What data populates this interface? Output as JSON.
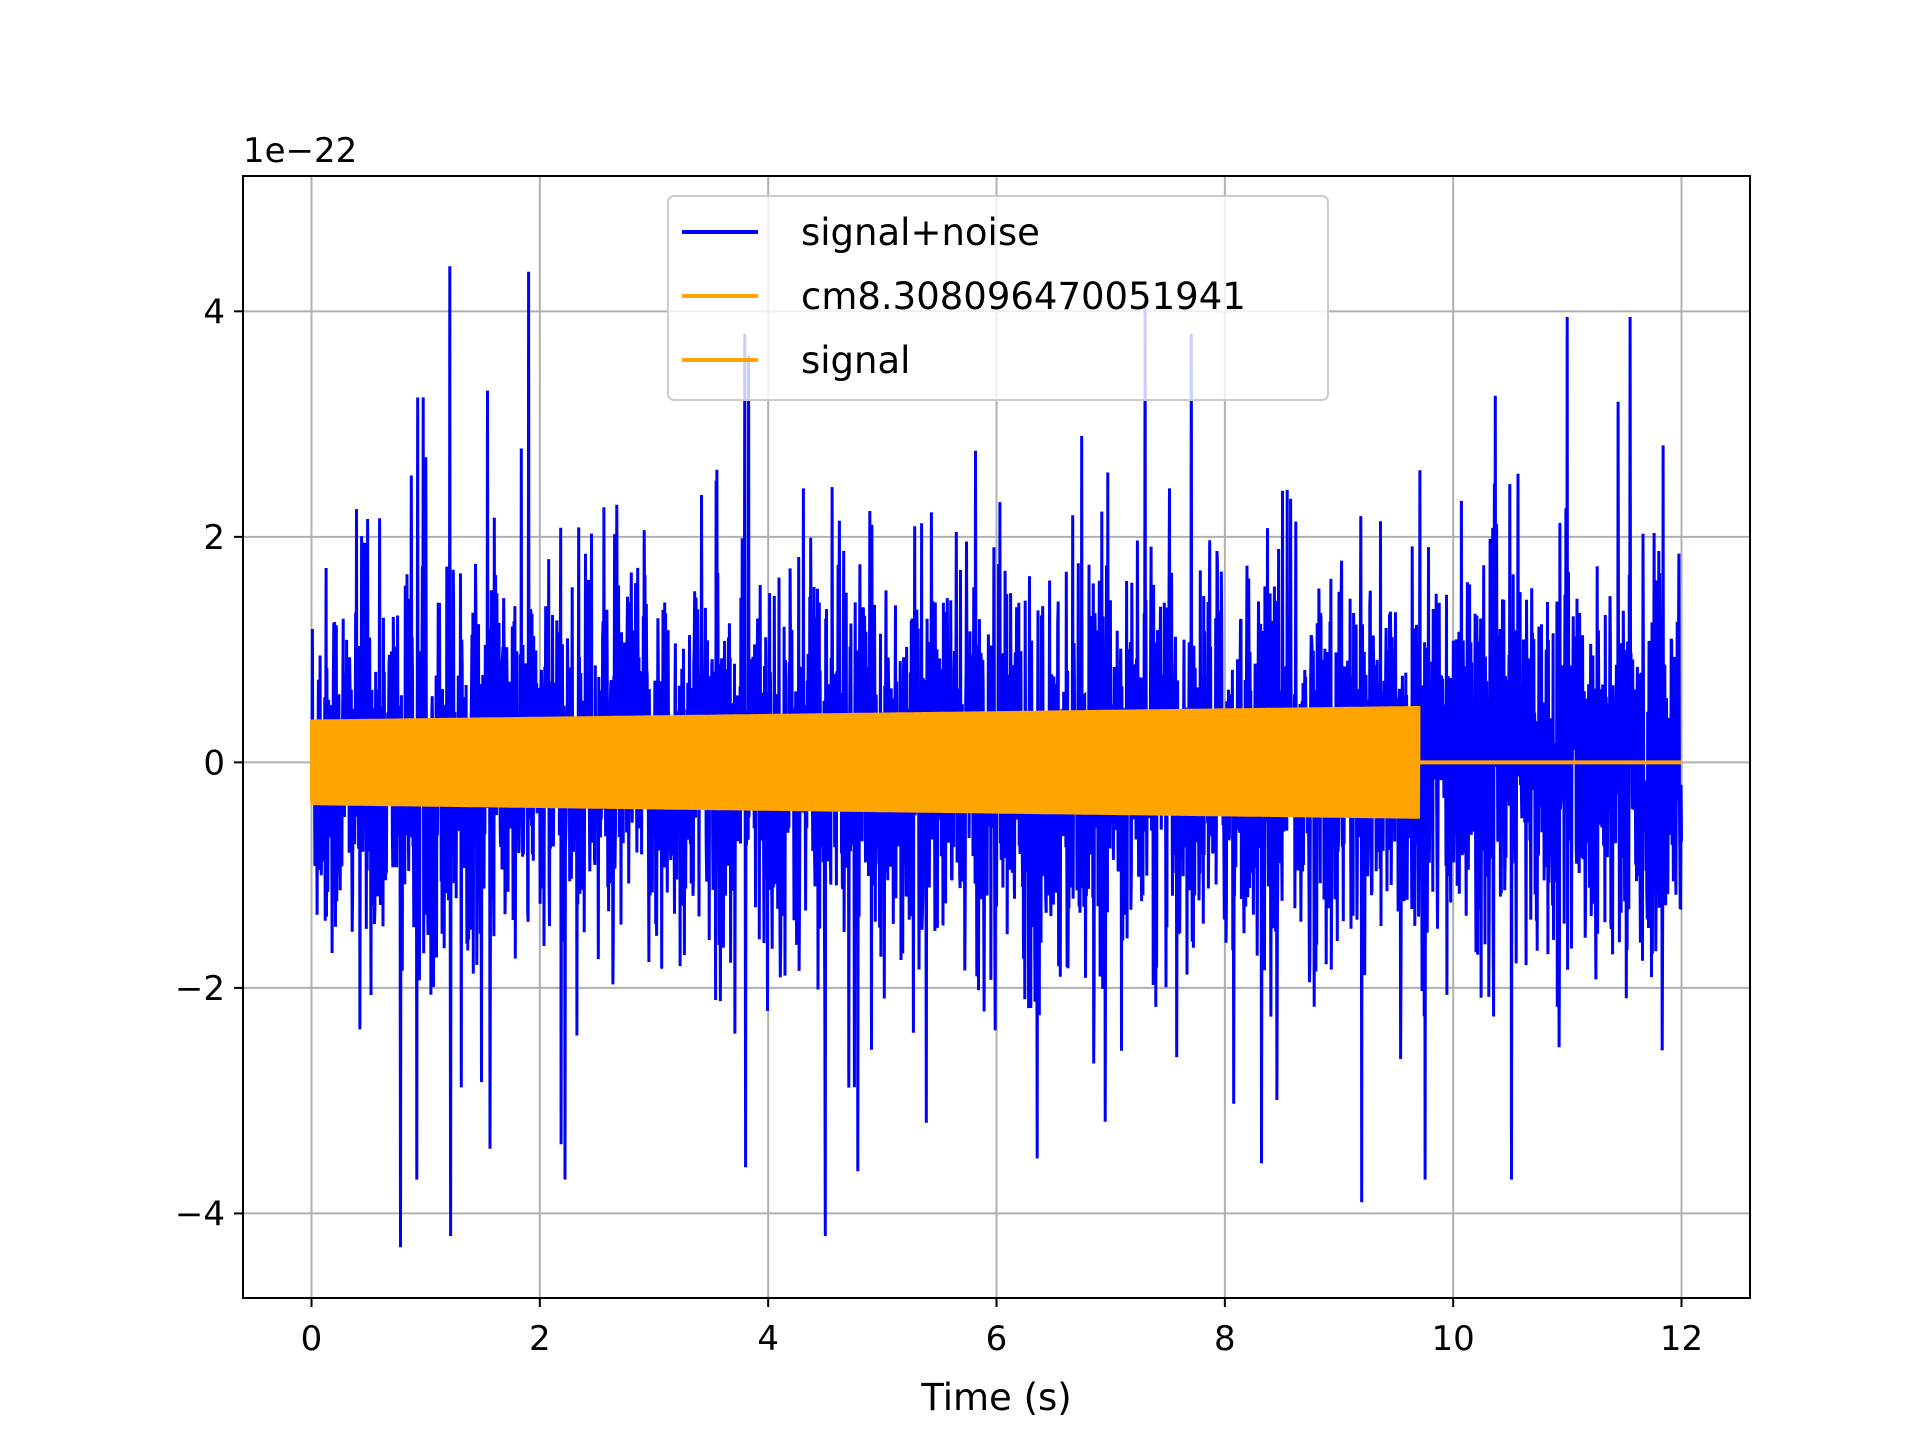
{
  "chart_data": {
    "type": "line",
    "title": "",
    "xlabel": "Time (s)",
    "ylabel": "",
    "y_offset_label": "1e−22",
    "xlim": [
      -0.6,
      12.6
    ],
    "ylim": [
      -4.75,
      5.2
    ],
    "xticks": [
      0,
      2,
      4,
      6,
      8,
      10,
      12
    ],
    "xtick_labels": [
      "0",
      "2",
      "4",
      "6",
      "8",
      "10",
      "12"
    ],
    "yticks": [
      -4,
      -2,
      0,
      2,
      4
    ],
    "ytick_labels": [
      "−4",
      "−2",
      "0",
      "2",
      "4"
    ],
    "grid": true,
    "legend_position": "upper center",
    "series": [
      {
        "name": "signal+noise",
        "color": "#0000ff",
        "kind": "noise",
        "x_range": [
          0,
          12
        ],
        "typical_envelope": [
          -1.5,
          1.5
        ],
        "min_value": -4.3,
        "max_value": 4.4,
        "spikes": [
          {
            "x": 0.78,
            "y": -4.3
          },
          {
            "x": 1.21,
            "y": 4.4
          },
          {
            "x": 1.22,
            "y": -4.2
          },
          {
            "x": 1.9,
            "y": 4.35
          },
          {
            "x": 4.5,
            "y": -4.2
          },
          {
            "x": 7.3,
            "y": 4.1
          },
          {
            "x": 9.2,
            "y": -3.9
          },
          {
            "x": 11.55,
            "y": 3.95
          },
          {
            "x": 11.0,
            "y": 3.95
          }
        ]
      },
      {
        "name": "cm8.308096470051941",
        "color": "#ffa500",
        "kind": "line",
        "x": [
          0,
          12
        ],
        "y": [
          0,
          0
        ]
      },
      {
        "name": "signal",
        "color": "#ffa500",
        "kind": "chirp",
        "x_start": 0,
        "x_end": 9.7,
        "amplitude_start": 0.38,
        "amplitude_end": 0.5,
        "after_end_value": 0,
        "x_max": 12
      }
    ]
  }
}
